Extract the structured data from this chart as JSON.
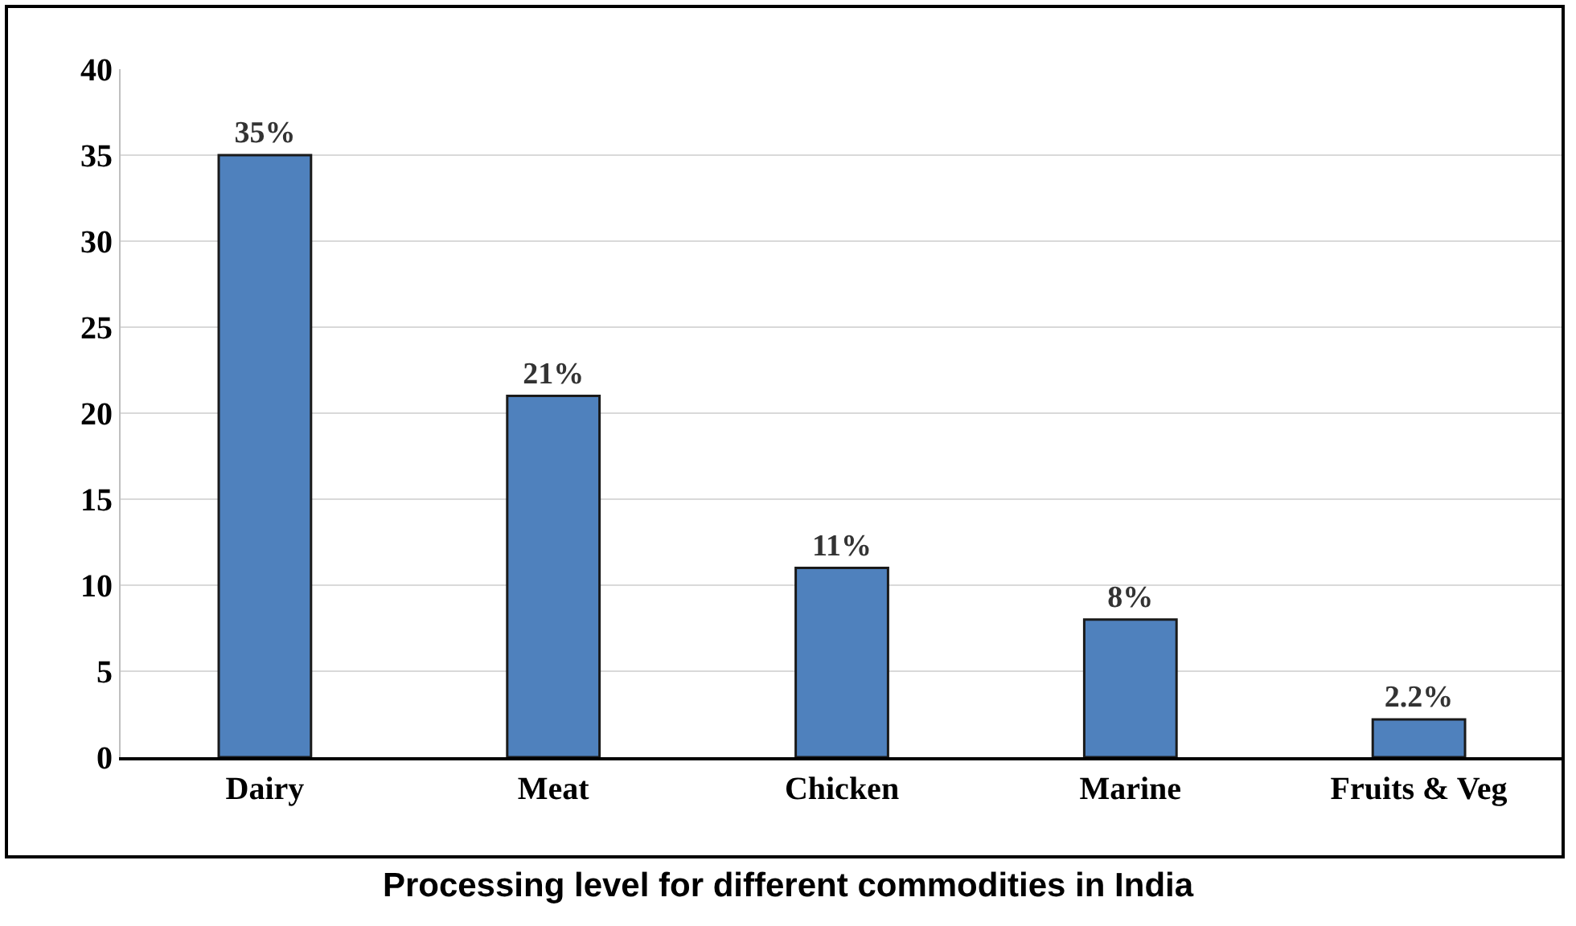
{
  "chart_data": {
    "type": "bar",
    "title": "Processing level for different commodities in India",
    "categories": [
      "Dairy",
      "Meat",
      "Chicken",
      "Marine",
      "Fruits & Veg"
    ],
    "values": [
      35,
      21,
      11,
      8,
      2.2
    ],
    "value_labels": [
      "35%",
      "21%",
      "11%",
      "8%",
      "2.2%"
    ],
    "color": "#4f81bd",
    "ylim": [
      0,
      40
    ],
    "yticks": [
      0,
      5,
      10,
      15,
      20,
      25,
      30,
      35,
      40
    ],
    "grid": "y",
    "legend": false
  }
}
